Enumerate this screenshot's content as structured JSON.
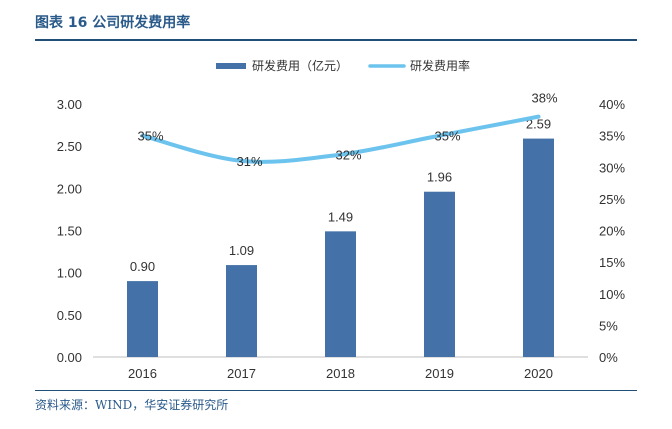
{
  "header": {
    "title": "图表 16 公司研发费用率"
  },
  "footer": {
    "source": "资料来源：WIND，华安证券研究所"
  },
  "colors": {
    "bar": "#4472a8",
    "line": "#6cc3ee",
    "title": "#2a5a8a",
    "rule": "#1f4e79",
    "text": "#333333"
  },
  "chart_data": {
    "type": "bar",
    "categories": [
      "2016",
      "2017",
      "2018",
      "2019",
      "2020"
    ],
    "series": [
      {
        "name": "研发费用（亿元）",
        "type": "bar",
        "axis": "left",
        "values": [
          0.9,
          1.09,
          1.49,
          1.96,
          2.59
        ],
        "labels": [
          "0.90",
          "1.09",
          "1.49",
          "1.96",
          "2.59"
        ]
      },
      {
        "name": "研发费用率",
        "type": "line",
        "axis": "right",
        "values": [
          35,
          31,
          32,
          35,
          38
        ],
        "labels": [
          "35%",
          "31%",
          "32%",
          "35%",
          "38%"
        ]
      }
    ],
    "y_left": {
      "ylim": [
        0,
        3
      ],
      "ticks": [
        0,
        0.5,
        1,
        1.5,
        2,
        2.5,
        3
      ],
      "tick_labels": [
        "0.00",
        "0.50",
        "1.00",
        "1.50",
        "2.00",
        "2.50",
        "3.00"
      ]
    },
    "y_right": {
      "ylim": [
        0,
        40
      ],
      "ticks": [
        0,
        5,
        10,
        15,
        20,
        25,
        30,
        35,
        40
      ],
      "tick_labels": [
        "0%",
        "5%",
        "10%",
        "15%",
        "20%",
        "25%",
        "30%",
        "35%",
        "40%"
      ]
    },
    "grid": false,
    "legend": "top-center"
  }
}
